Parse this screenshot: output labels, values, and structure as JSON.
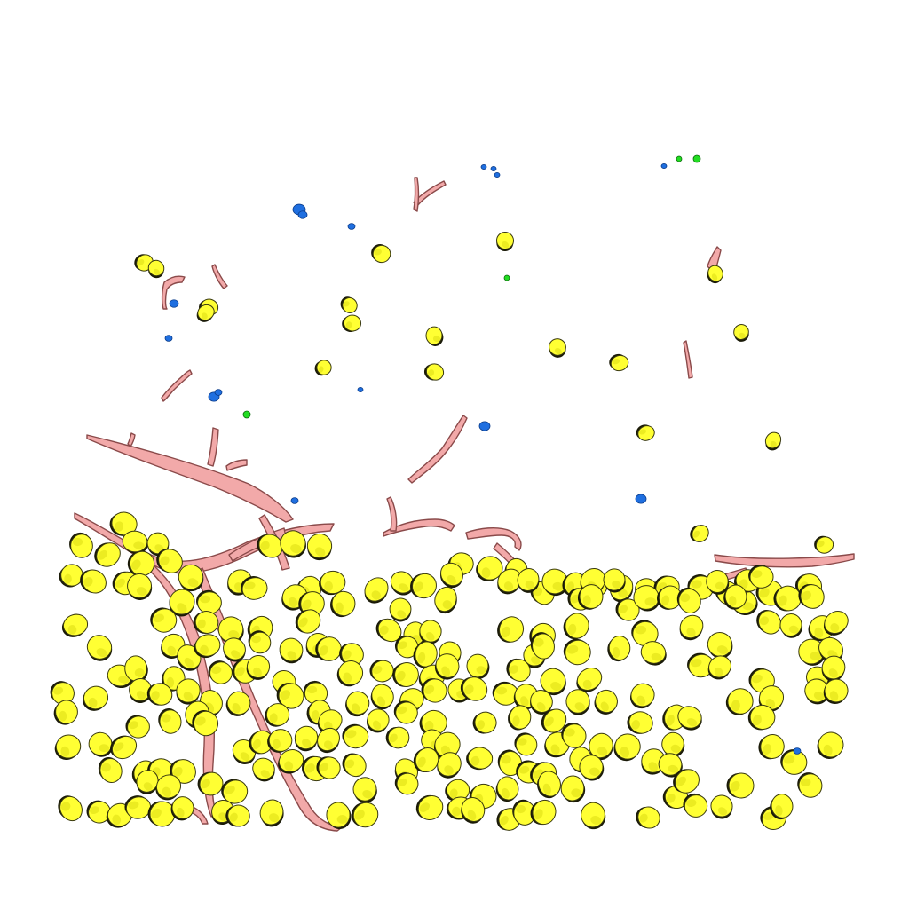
{
  "scene": {
    "background": "#ffffff",
    "colors": {
      "cell_fill": "#ffff33",
      "cell_shade": "#c9c900",
      "cell_outline": "#3a3a10",
      "vessel_fill": "#f2a9a9",
      "vessel_shade": "#c97878",
      "vessel_outline": "#8a4a4a",
      "blue_object": "#1f6fe0",
      "green_object": "#22dd22"
    }
  }
}
